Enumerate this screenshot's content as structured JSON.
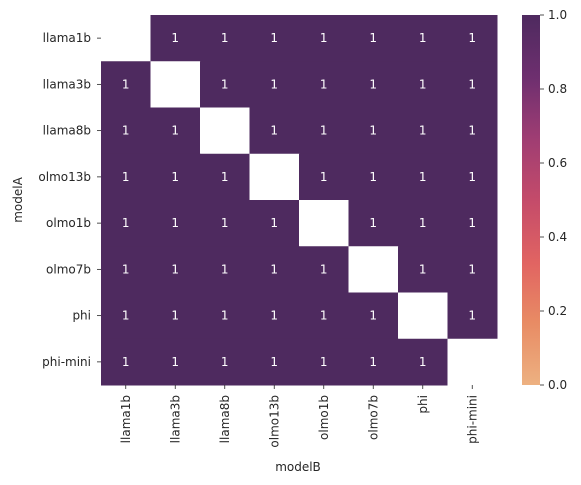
{
  "chart_data": {
    "type": "heatmap",
    "title": "",
    "xlabel": "modelB",
    "ylabel": "modelA",
    "rows": [
      "llama1b",
      "llama3b",
      "llama8b",
      "olmo13b",
      "olmo1b",
      "olmo7b",
      "phi",
      "phi-mini"
    ],
    "cols": [
      "llama1b",
      "llama3b",
      "llama8b",
      "olmo13b",
      "olmo1b",
      "olmo7b",
      "phi",
      "phi-mini"
    ],
    "values": [
      [
        null,
        1,
        1,
        1,
        1,
        1,
        1,
        1
      ],
      [
        1,
        null,
        1,
        1,
        1,
        1,
        1,
        1
      ],
      [
        1,
        1,
        null,
        1,
        1,
        1,
        1,
        1
      ],
      [
        1,
        1,
        1,
        null,
        1,
        1,
        1,
        1
      ],
      [
        1,
        1,
        1,
        1,
        null,
        1,
        1,
        1
      ],
      [
        1,
        1,
        1,
        1,
        1,
        null,
        1,
        1
      ],
      [
        1,
        1,
        1,
        1,
        1,
        1,
        null,
        1
      ],
      [
        1,
        1,
        1,
        1,
        1,
        1,
        1,
        null
      ]
    ],
    "colorbar": {
      "min": 0.0,
      "max": 1.0,
      "ticks": [
        "0.0",
        "0.2",
        "0.4",
        "0.6",
        "0.8",
        "1.0"
      ],
      "colormap": [
        "#edb181",
        "#e88b64",
        "#e16462",
        "#c44b6a",
        "#9e3d73",
        "#6e2f6f",
        "#4e2a5f"
      ]
    },
    "annotation_color": "#ffffff",
    "missing_color": "#ffffff"
  }
}
